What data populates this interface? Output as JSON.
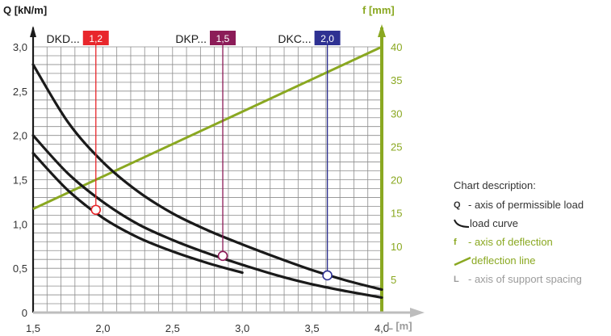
{
  "chart_data": {
    "type": "line",
    "x_axis": {
      "label": "L [m]",
      "range": [
        1.5,
        4.0
      ],
      "ticks": [
        1.5,
        2.0,
        2.5,
        3.0,
        3.5,
        4.0
      ],
      "tick_labels": [
        "1,5",
        "2,0",
        "2,5",
        "3,0",
        "3,5",
        "4,0"
      ]
    },
    "y_axis_left": {
      "label": "Q [kN/m]",
      "range": [
        0,
        3.0
      ],
      "ticks": [
        0,
        0.5,
        1.0,
        1.5,
        2.0,
        2.5,
        3.0
      ],
      "tick_labels": [
        "0",
        "0,5",
        "1,0",
        "1,5",
        "2,0",
        "2,5",
        "3,0"
      ]
    },
    "y_axis_right": {
      "label": "f [mm]",
      "range": [
        0,
        40
      ],
      "ticks": [
        5,
        10,
        15,
        20,
        25,
        30,
        35,
        40
      ],
      "tick_labels": [
        "5",
        "10",
        "15",
        "20",
        "25",
        "30",
        "35",
        "40"
      ]
    },
    "grid": true,
    "load_curves": [
      {
        "x": [
          1.5,
          1.75,
          2.0,
          2.25,
          2.5,
          2.75,
          3.0
        ],
        "y": [
          1.8,
          1.38,
          1.07,
          0.85,
          0.69,
          0.56,
          0.45
        ]
      },
      {
        "x": [
          1.5,
          1.75,
          2.0,
          2.25,
          2.5,
          2.75,
          3.0,
          3.25,
          3.5,
          3.75,
          4.0
        ],
        "y": [
          2.0,
          1.57,
          1.25,
          1.0,
          0.82,
          0.67,
          0.54,
          0.42,
          0.32,
          0.24,
          0.17
        ]
      },
      {
        "x": [
          1.5,
          1.75,
          2.0,
          2.25,
          2.5,
          2.75,
          3.0,
          3.25,
          3.5,
          3.75,
          4.0
        ],
        "y": [
          2.8,
          2.15,
          1.7,
          1.37,
          1.12,
          0.93,
          0.77,
          0.62,
          0.48,
          0.36,
          0.26
        ]
      }
    ],
    "deflection_line": {
      "x": [
        1.5,
        4.0
      ],
      "f": [
        15.6,
        40.0
      ]
    },
    "markers": [
      {
        "series": "DKD...",
        "value_label": "1,2",
        "x": 1.95,
        "y": 1.16,
        "color": "#e8262b"
      },
      {
        "series": "DKP...",
        "value_label": "1,5",
        "x": 2.86,
        "y": 0.64,
        "color": "#8c1c58"
      },
      {
        "series": "DKC...",
        "value_label": "2,0",
        "x": 3.61,
        "y": 0.42,
        "color": "#2e3192"
      }
    ]
  },
  "legend": {
    "heading": "Chart description:",
    "q_key": "Q",
    "q_text": "- axis of permissible load",
    "load_curve_text": "load curve",
    "f_key": "f",
    "f_text": "- axis of deflection",
    "deflection_line_text": "deflection line",
    "l_key": "L",
    "l_text": "- axis of support spacing"
  },
  "colors": {
    "curve": "#1a1a1a",
    "deflection": "#8aa821",
    "grid": "#8c8c8c",
    "x_axis": "#bdbdbd",
    "legend_grey": "#9b9b9b"
  }
}
